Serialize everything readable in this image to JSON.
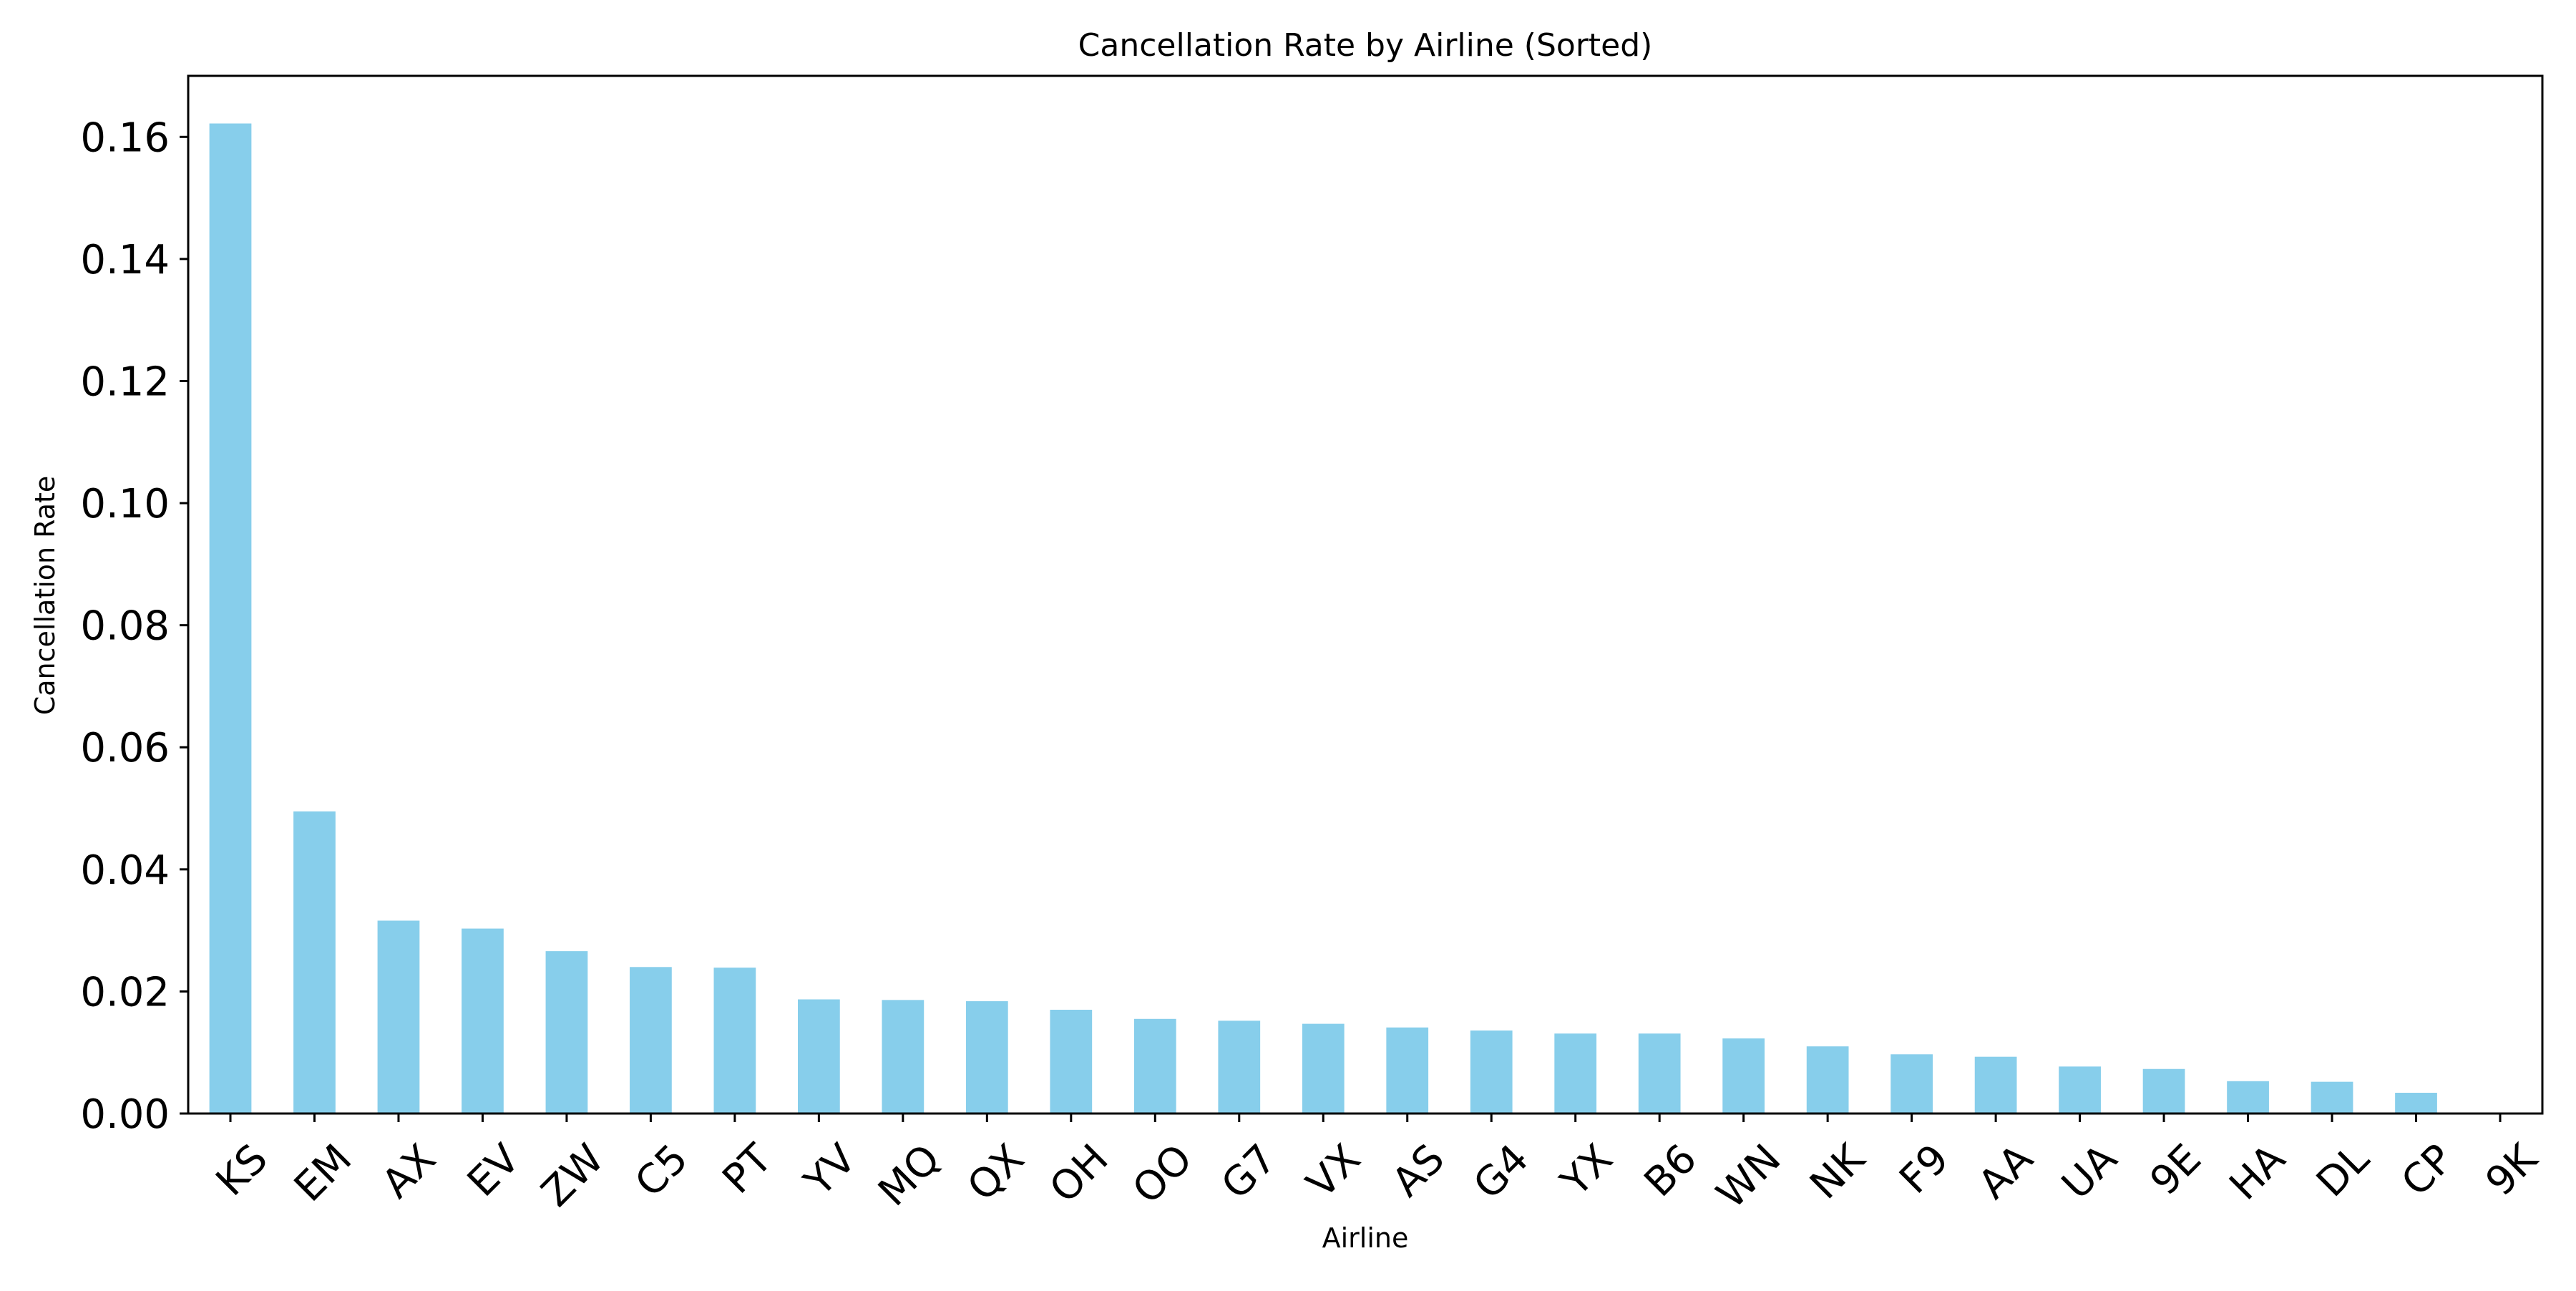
{
  "chart_data": {
    "type": "bar",
    "title": "Cancellation Rate by Airline (Sorted)",
    "xlabel": "Airline",
    "ylabel": "Cancellation Rate",
    "categories": [
      "KS",
      "EM",
      "AX",
      "EV",
      "ZW",
      "C5",
      "PT",
      "YV",
      "MQ",
      "QX",
      "OH",
      "OO",
      "G7",
      "VX",
      "AS",
      "G4",
      "YX",
      "B6",
      "WN",
      "NK",
      "F9",
      "AA",
      "UA",
      "9E",
      "HA",
      "DL",
      "CP",
      "9K"
    ],
    "values": [
      0.1622,
      0.0495,
      0.0316,
      0.0303,
      0.0266,
      0.024,
      0.0239,
      0.0187,
      0.0186,
      0.0184,
      0.017,
      0.0155,
      0.0152,
      0.0147,
      0.0141,
      0.0136,
      0.0131,
      0.0131,
      0.0123,
      0.011,
      0.0097,
      0.0093,
      0.0077,
      0.0073,
      0.0053,
      0.0052,
      0.0034,
      0.0
    ],
    "ylim": [
      0,
      0.17
    ],
    "yticks": [
      "0.00",
      "0.02",
      "0.04",
      "0.06",
      "0.08",
      "0.10",
      "0.12",
      "0.14",
      "0.16"
    ],
    "bar_color": "#87ceeb",
    "grid": false,
    "legend": "none"
  }
}
